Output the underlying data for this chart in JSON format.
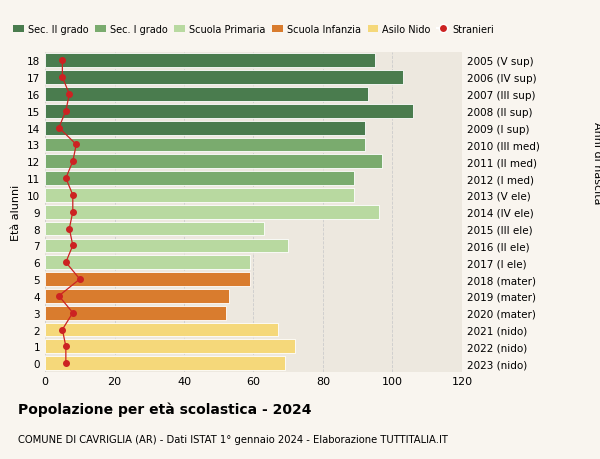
{
  "ages": [
    18,
    17,
    16,
    15,
    14,
    13,
    12,
    11,
    10,
    9,
    8,
    7,
    6,
    5,
    4,
    3,
    2,
    1,
    0
  ],
  "bar_values": [
    95,
    103,
    93,
    106,
    92,
    92,
    97,
    89,
    89,
    96,
    63,
    70,
    59,
    59,
    53,
    52,
    67,
    72,
    69
  ],
  "stranieri": [
    5,
    5,
    7,
    6,
    4,
    9,
    8,
    6,
    8,
    8,
    7,
    8,
    6,
    10,
    4,
    8,
    5,
    6,
    6
  ],
  "right_labels": [
    "2005 (V sup)",
    "2006 (IV sup)",
    "2007 (III sup)",
    "2008 (II sup)",
    "2009 (I sup)",
    "2010 (III med)",
    "2011 (II med)",
    "2012 (I med)",
    "2013 (V ele)",
    "2014 (IV ele)",
    "2015 (III ele)",
    "2016 (II ele)",
    "2017 (I ele)",
    "2018 (mater)",
    "2019 (mater)",
    "2020 (mater)",
    "2021 (nido)",
    "2022 (nido)",
    "2023 (nido)"
  ],
  "bar_colors": [
    "#4a7c4e",
    "#4a7c4e",
    "#4a7c4e",
    "#4a7c4e",
    "#4a7c4e",
    "#7aab6e",
    "#7aab6e",
    "#7aab6e",
    "#b8d9a0",
    "#b8d9a0",
    "#b8d9a0",
    "#b8d9a0",
    "#b8d9a0",
    "#d97c2e",
    "#d97c2e",
    "#d97c2e",
    "#f5d87a",
    "#f5d87a",
    "#f5d87a"
  ],
  "legend_labels": [
    "Sec. II grado",
    "Sec. I grado",
    "Scuola Primaria",
    "Scuola Infanzia",
    "Asilo Nido",
    "Stranieri"
  ],
  "legend_colors": [
    "#4a7c4e",
    "#7aab6e",
    "#b8d9a0",
    "#d97c2e",
    "#f5d87a",
    "#cc2222"
  ],
  "title": "Popolazione per età scolastica - 2024",
  "subtitle": "COMUNE DI CAVRIGLIA (AR) - Dati ISTAT 1° gennaio 2024 - Elaborazione TUTTITALIA.IT",
  "ylabel_left": "Età alunni",
  "ylabel_right": "Anni di nascita",
  "xlim": [
    0,
    120
  ],
  "bg_color": "#f9f5ef",
  "bar_bg_color": "#ede8df",
  "grid_color": "#cccccc",
  "stranieri_color": "#cc2222",
  "xticks": [
    0,
    20,
    40,
    60,
    80,
    100,
    120
  ]
}
